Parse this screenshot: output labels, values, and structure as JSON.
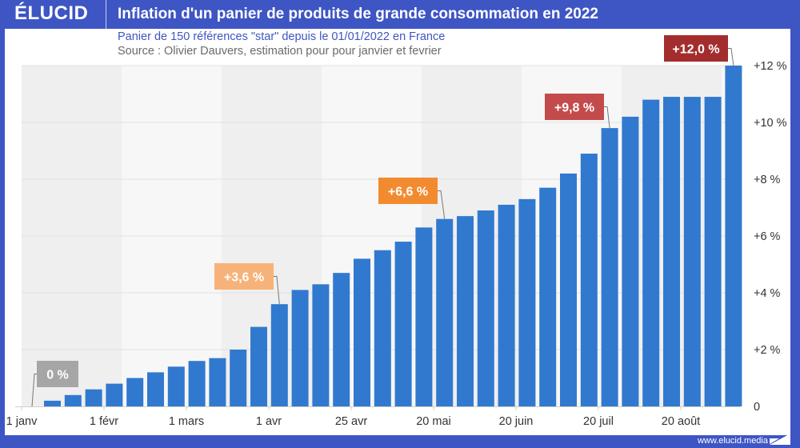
{
  "header": {
    "logo": "ÉLUCID",
    "title": "Inflation d'un panier de produits de grande consommation en 2022",
    "subtitle": "Panier de 150 références \"star\" depuis le 01/01/2022 en France",
    "source": "Source : Olivier Dauvers, estimation pour pour janvier et fevrier"
  },
  "footer": {
    "url": "www.elucid.media"
  },
  "colors": {
    "brand": "#3e55c4",
    "bar": "#3179cf",
    "band_dark": "#efefef",
    "band_light": "#f7f7f7"
  },
  "chart_data": {
    "type": "bar",
    "title": "Inflation d'un panier de produits de grande consommation en 2022",
    "subtitle": "Panier de 150 références \"star\" depuis le 01/01/2022 en France",
    "xlabel": "",
    "ylabel": "",
    "ylim": [
      0,
      12
    ],
    "yaxis_position": "right",
    "yticks": [
      0,
      2,
      4,
      6,
      8,
      10,
      12
    ],
    "ytick_labels": [
      "0",
      "+2 %",
      "+4 %",
      "+6 %",
      "+8 %",
      "+10 %",
      "+12 %"
    ],
    "xtick_labels": [
      "1 janv",
      "1 févr",
      "1 mars",
      "1 avr",
      "25 avr",
      "20 mai",
      "20 juin",
      "20 juil",
      "20 août"
    ],
    "grid": true,
    "values": [
      0.2,
      0.4,
      0.6,
      0.8,
      1.0,
      1.2,
      1.4,
      1.6,
      1.7,
      2.0,
      2.8,
      3.6,
      4.1,
      4.3,
      4.7,
      5.2,
      5.5,
      5.8,
      6.3,
      6.6,
      6.7,
      6.9,
      7.1,
      7.3,
      7.7,
      8.2,
      8.9,
      9.8,
      10.2,
      10.8,
      10.9,
      10.9,
      10.9,
      12.0
    ],
    "annotations": [
      {
        "label": "0 %",
        "bar_index": -1,
        "value": 0,
        "color": "#a6a6a6"
      },
      {
        "label": "+3,6 %",
        "bar_index": 11,
        "value": 3.6,
        "color": "#f7b27a"
      },
      {
        "label": "+6,6 %",
        "bar_index": 19,
        "value": 6.6,
        "color": "#f28b30"
      },
      {
        "label": "+9,8 %",
        "bar_index": 27,
        "value": 9.8,
        "color": "#c44b4b"
      },
      {
        "label": "+12,0 %",
        "bar_index": 33,
        "value": 12.0,
        "color": "#a32d2d"
      }
    ]
  }
}
